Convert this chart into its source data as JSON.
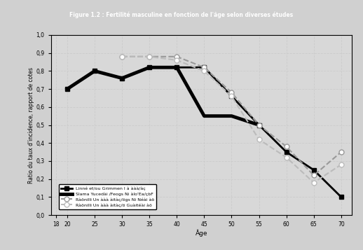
{
  "title": "Figure 1.2 : Fertilité masculine en fonction de l'âge selon diverses études",
  "xlabel": "Âge",
  "ylabel": "Ratio du taux d'incidence, rapport de cotes",
  "series": [
    {
      "label": "Linné et/ou Grimmen I à ààà/àç",
      "x": [
        20,
        25,
        30,
        35,
        40,
        45,
        50,
        55,
        60,
        65,
        70
      ],
      "y": [
        0.7,
        0.8,
        0.76,
        0.82,
        0.82,
        0.82,
        0.66,
        0.5,
        0.35,
        0.25,
        0.1
      ],
      "color": "black",
      "linestyle": "-",
      "marker": "s",
      "linewidth": 2.0,
      "markersize": 5
    },
    {
      "label": "Slama Yucedài /Feogs Ni àlo'Ea/çbF",
      "x": [
        20,
        25,
        30,
        35,
        40,
        45,
        50,
        55
      ],
      "y": [
        0.7,
        0.8,
        0.76,
        0.82,
        0.82,
        0.55,
        0.55,
        0.5
      ],
      "color": "black",
      "linestyle": "-",
      "marker": "None",
      "linewidth": 3.5,
      "markersize": 0
    },
    {
      "label": "Ràönilli Un ààà àitàç/ögs Ni Néài àö",
      "x": [
        30,
        35,
        40,
        45,
        50,
        55,
        60,
        65,
        70
      ],
      "y": [
        0.88,
        0.88,
        0.88,
        0.82,
        0.68,
        0.5,
        0.38,
        0.22,
        0.35
      ],
      "color": "#999999",
      "linestyle": "--",
      "marker": "o",
      "linewidth": 1.5,
      "markersize": 5
    },
    {
      "label": "Ràönilli Un ààà àitàç/ö Guàitéài àö",
      "x": [
        30,
        35,
        40,
        45,
        50,
        55,
        60,
        65,
        70
      ],
      "y": [
        0.88,
        0.88,
        0.86,
        0.8,
        0.66,
        0.42,
        0.32,
        0.18,
        0.28
      ],
      "color": "#bbbbbb",
      "linestyle": "--",
      "marker": "o",
      "linewidth": 1.5,
      "markersize": 5
    }
  ],
  "xlim": [
    17,
    72
  ],
  "ylim": [
    0.0,
    1.0
  ],
  "xticks": [
    18,
    20,
    25,
    30,
    35,
    40,
    45,
    50,
    55,
    60,
    65,
    70
  ],
  "xtick_labels": [
    "18",
    "20",
    "25",
    "30",
    "35",
    "40",
    "45",
    "50",
    "55",
    "60",
    "65",
    "70"
  ],
  "yticks": [
    0.0,
    0.1,
    0.2,
    0.3,
    0.4,
    0.5,
    0.6,
    0.7,
    0.8,
    0.9,
    1.0
  ],
  "ytick_labels": [
    "0,0",
    "0,1",
    "0,2",
    "0,3",
    "0,4",
    "0,5",
    "0,6",
    "0,7",
    "0,8",
    "0,9",
    "1,0"
  ],
  "grid_color": "#cccccc",
  "bg_color": "#d8d8d8",
  "fig_bg": "#d0d0d0",
  "title_bg": "#303030"
}
